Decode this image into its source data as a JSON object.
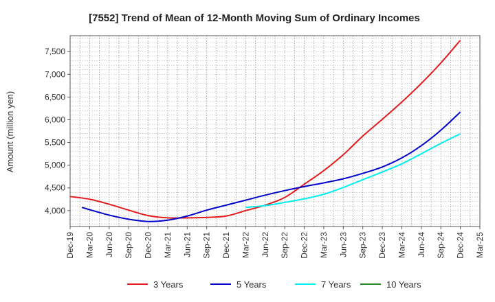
{
  "chart_data": {
    "type": "line",
    "title": "[7552]  Trend of Mean of 12-Month Moving Sum of Ordinary Incomes",
    "xlabel": "",
    "ylabel": "Amount (million yen)",
    "ylim": [
      3650,
      7850
    ],
    "yticks": [
      4000,
      4500,
      5000,
      5500,
      6000,
      6500,
      7000,
      7500
    ],
    "ytick_labels": [
      "4,000",
      "4,500",
      "5,000",
      "5,500",
      "6,000",
      "6,500",
      "7,000",
      "7,500"
    ],
    "xtick_labels": [
      "Dec-19",
      "Mar-20",
      "Jun-20",
      "Sep-20",
      "Dec-20",
      "Mar-21",
      "Jun-21",
      "Sep-21",
      "Dec-21",
      "Mar-22",
      "Jun-22",
      "Sep-22",
      "Dec-22",
      "Mar-23",
      "Jun-23",
      "Sep-23",
      "Dec-23",
      "Mar-24",
      "Jun-24",
      "Sep-24",
      "Dec-24",
      "Mar-25"
    ],
    "grid": true,
    "legend_position": "bottom",
    "series": [
      {
        "name": "3 Years",
        "color": "#e41a1c",
        "points": [
          [
            0,
            4310
          ],
          [
            1,
            4250
          ],
          [
            2,
            4140
          ],
          [
            3,
            4010
          ],
          [
            4,
            3890
          ],
          [
            5,
            3840
          ],
          [
            6,
            3840
          ],
          [
            7,
            3850
          ],
          [
            8,
            3880
          ],
          [
            9,
            4000
          ],
          [
            10,
            4120
          ],
          [
            11,
            4290
          ],
          [
            12,
            4580
          ],
          [
            13,
            4880
          ],
          [
            14,
            5230
          ],
          [
            15,
            5640
          ],
          [
            16,
            6010
          ],
          [
            17,
            6390
          ],
          [
            18,
            6800
          ],
          [
            19,
            7250
          ],
          [
            20,
            7750
          ]
        ]
      },
      {
        "name": "5 Years",
        "color": "#0000cc",
        "points": [
          [
            0.6,
            4070
          ],
          [
            1,
            4020
          ],
          [
            2,
            3900
          ],
          [
            3,
            3810
          ],
          [
            4,
            3760
          ],
          [
            5,
            3790
          ],
          [
            6,
            3880
          ],
          [
            7,
            4010
          ],
          [
            8,
            4120
          ],
          [
            9,
            4230
          ],
          [
            10,
            4340
          ],
          [
            11,
            4440
          ],
          [
            12,
            4530
          ],
          [
            13,
            4610
          ],
          [
            14,
            4700
          ],
          [
            15,
            4820
          ],
          [
            16,
            4960
          ],
          [
            17,
            5160
          ],
          [
            18,
            5430
          ],
          [
            19,
            5770
          ],
          [
            20,
            6170
          ]
        ]
      },
      {
        "name": "7 Years",
        "color": "#00eeee",
        "points": [
          [
            9,
            4070
          ],
          [
            10,
            4110
          ],
          [
            11,
            4180
          ],
          [
            12,
            4260
          ],
          [
            13,
            4360
          ],
          [
            14,
            4510
          ],
          [
            15,
            4680
          ],
          [
            16,
            4850
          ],
          [
            17,
            5030
          ],
          [
            18,
            5250
          ],
          [
            19,
            5480
          ],
          [
            20,
            5690
          ]
        ]
      },
      {
        "name": "10 Years",
        "color": "#228b22",
        "points": []
      }
    ]
  }
}
